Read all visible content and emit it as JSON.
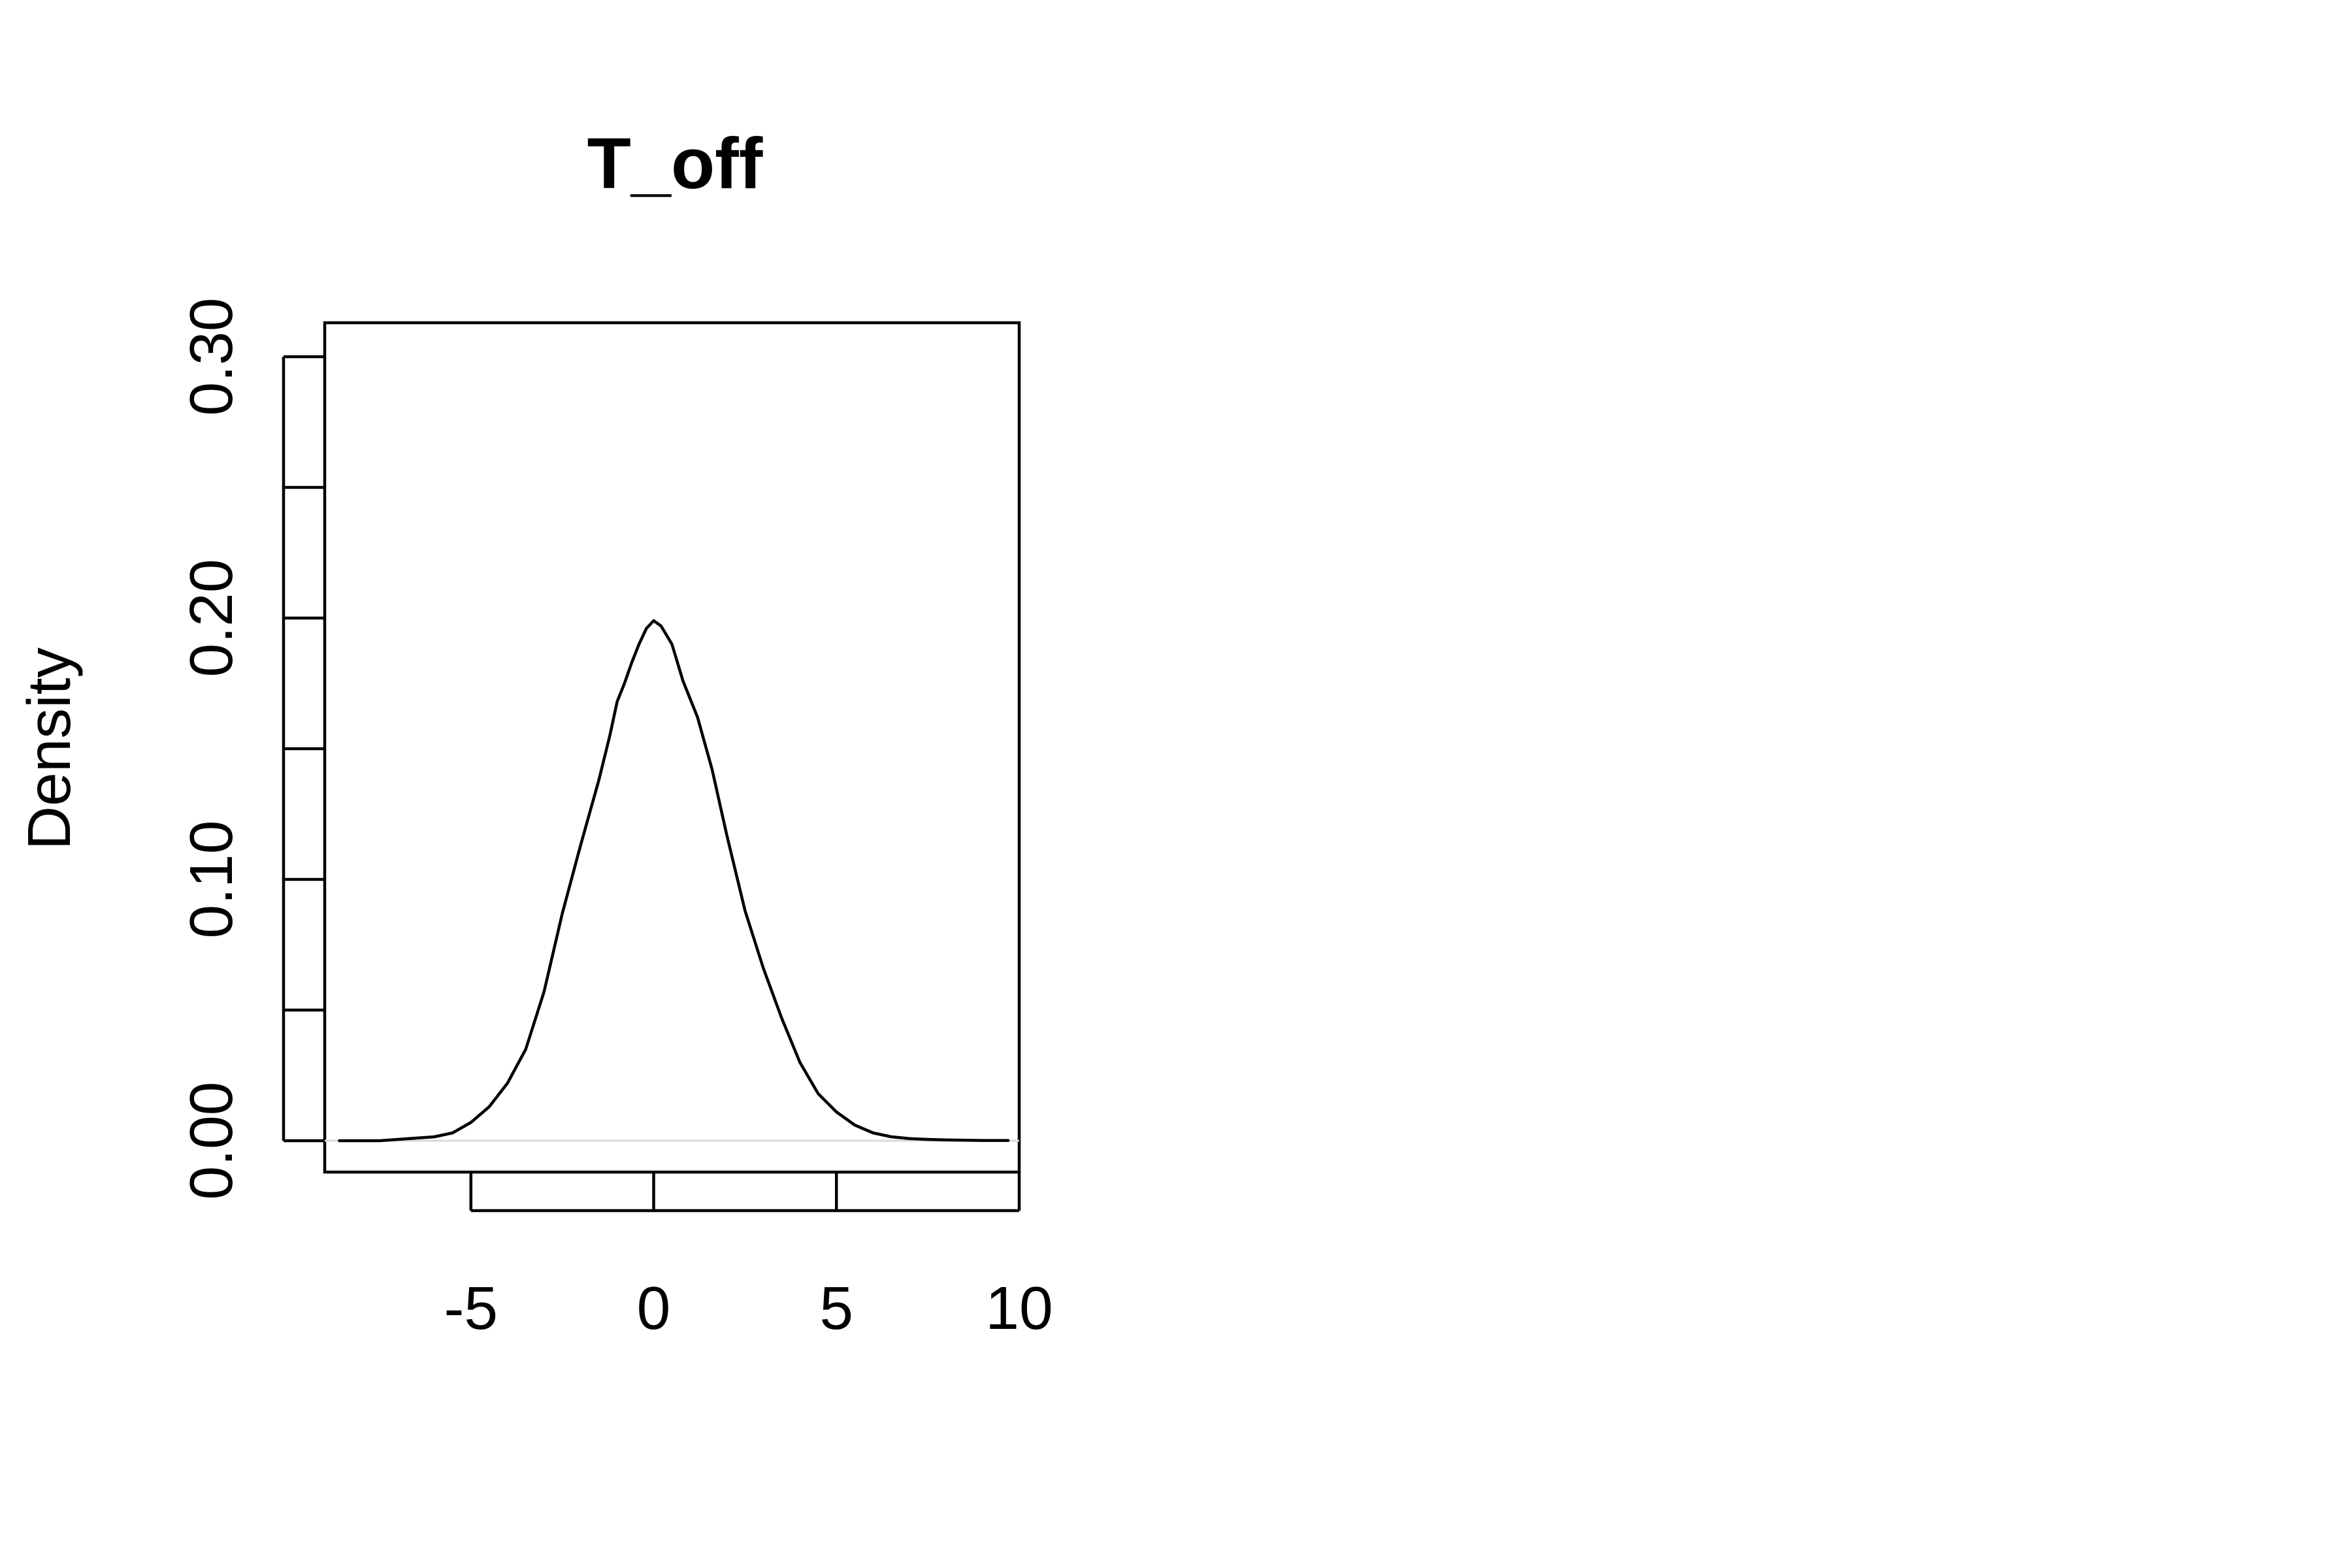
{
  "chart_data": {
    "type": "line",
    "title": "T_off",
    "xlabel": "",
    "ylabel": "Density",
    "xlim": [
      -9.0,
      10.0
    ],
    "ylim": [
      -0.012,
      0.313
    ],
    "x_ticks": [
      -5,
      0,
      5,
      10
    ],
    "x_tick_labels": [
      "-5",
      "0",
      "5",
      "10"
    ],
    "y_ticks": [
      0.0,
      0.05,
      0.1,
      0.15,
      0.2,
      0.25,
      0.3
    ],
    "y_tick_labels": [
      "0.00",
      "",
      "0.10",
      "",
      "0.20",
      "",
      "0.30"
    ],
    "grid": false,
    "legend": "none",
    "line_color": "#000000",
    "baseline_color": "#d9d9d9",
    "series": [
      {
        "x": [
          -8.6,
          -8.0,
          -7.5,
          -7.0,
          -6.5,
          -6.0,
          -5.5,
          -5.0,
          -4.5,
          -4.0,
          -3.5,
          -3.0,
          -2.5,
          -2.0,
          -1.5,
          -1.2,
          -1.0,
          -0.8,
          -0.6,
          -0.4,
          -0.2,
          0.0,
          0.2,
          0.5,
          0.8,
          1.2,
          1.6,
          2.0,
          2.5,
          3.0,
          3.5,
          4.0,
          4.5,
          5.0,
          5.5,
          6.0,
          6.5,
          7.0,
          7.5,
          8.0,
          8.5,
          9.0,
          9.7
        ],
        "y": [
          0.0,
          0.0,
          0.0,
          0.0005,
          0.001,
          0.0015,
          0.003,
          0.007,
          0.013,
          0.022,
          0.035,
          0.057,
          0.087,
          0.113,
          0.138,
          0.155,
          0.168,
          0.175,
          0.183,
          0.19,
          0.196,
          0.199,
          0.197,
          0.19,
          0.176,
          0.162,
          0.142,
          0.117,
          0.088,
          0.066,
          0.047,
          0.03,
          0.018,
          0.011,
          0.006,
          0.003,
          0.0015,
          0.0008,
          0.0005,
          0.0003,
          0.0002,
          0.0001,
          0.0001
        ]
      }
    ]
  }
}
